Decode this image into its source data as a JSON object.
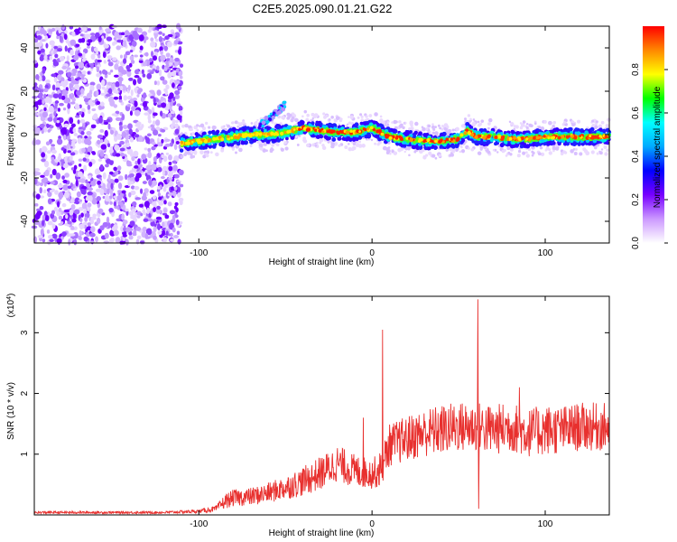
{
  "chart_data": [
    {
      "type": "heatmap",
      "title": "C2E5.2025.090.01.21.G22",
      "xlabel": "Height of straight line (km)",
      "ylabel": "Frequency (Hz)",
      "xlim": [
        -195,
        137
      ],
      "ylim": [
        -50,
        50
      ],
      "x_ticks": [
        -100,
        0,
        100
      ],
      "y_ticks": [
        -40,
        -20,
        0,
        20,
        40
      ],
      "grid": false,
      "colorbar": {
        "label": "Normalized spectral amplitude",
        "range": [
          0,
          1
        ],
        "ticks": [
          0.0,
          0.2,
          0.4,
          0.6,
          0.8
        ],
        "colors": [
          "#ffffff",
          "#cc99ff",
          "#7700ff",
          "#0000ff",
          "#00aaff",
          "#00ffff",
          "#00ff00",
          "#ffff00",
          "#ff8800",
          "#ff0000"
        ]
      },
      "noise_region_x": [
        -195,
        -110
      ],
      "trace": {
        "x": [
          -110,
          -100,
          -90,
          -80,
          -70,
          -60,
          -50,
          -40,
          -30,
          -20,
          -10,
          -5,
          0,
          10,
          20,
          30,
          40,
          50,
          55,
          60,
          70,
          80,
          90,
          100,
          110,
          120,
          137
        ],
        "y": [
          -4,
          -3,
          -2,
          -1,
          0,
          0,
          1,
          3,
          2,
          1,
          1,
          2,
          3,
          -1,
          -2,
          -3,
          -3,
          -2,
          2,
          -1,
          -1,
          -2,
          -2,
          -1,
          -1,
          -1,
          -1
        ]
      },
      "side_branch": {
        "x": [
          -65,
          -57,
          -50
        ],
        "y": [
          4,
          9,
          14
        ]
      }
    },
    {
      "type": "line",
      "title": "",
      "xlabel": "Height of straight line (km)",
      "ylabel": "SNR (10 * v/v)",
      "scale_label": "(x10",
      "scale_exp": "4",
      "xlim": [
        -195,
        137
      ],
      "ylim": [
        0,
        3.6
      ],
      "x_ticks": [
        -100,
        0,
        100
      ],
      "y_ticks": [
        1,
        2,
        3
      ],
      "grid": false,
      "color": "#e8302e",
      "profile_x": [
        -195,
        -120,
        -100,
        -90,
        -85,
        -80,
        -70,
        -60,
        -50,
        -40,
        -30,
        -20,
        -10,
        0,
        5,
        10,
        20,
        30,
        40,
        50,
        60,
        70,
        80,
        90,
        100,
        110,
        120,
        137
      ],
      "profile_mean": [
        0.04,
        0.04,
        0.06,
        0.1,
        0.22,
        0.28,
        0.3,
        0.36,
        0.45,
        0.55,
        0.68,
        0.85,
        0.72,
        0.68,
        0.75,
        1.15,
        1.25,
        1.35,
        1.4,
        1.45,
        1.45,
        1.4,
        1.45,
        1.35,
        1.4,
        1.4,
        1.45,
        1.45
      ],
      "profile_amp": [
        0.02,
        0.02,
        0.03,
        0.05,
        0.12,
        0.14,
        0.15,
        0.17,
        0.2,
        0.24,
        0.28,
        0.3,
        0.28,
        0.25,
        0.3,
        0.35,
        0.38,
        0.4,
        0.42,
        0.42,
        0.42,
        0.42,
        0.42,
        0.4,
        0.42,
        0.4,
        0.4,
        0.4
      ],
      "spikes": [
        {
          "x": 6,
          "y": 3.05
        },
        {
          "x": 7,
          "y": 0.9
        },
        {
          "x": 61,
          "y": 3.55
        },
        {
          "x": 61.5,
          "y": 0.1
        },
        {
          "x": -5,
          "y": 1.6
        },
        {
          "x": 85,
          "y": 2.1
        }
      ]
    }
  ]
}
